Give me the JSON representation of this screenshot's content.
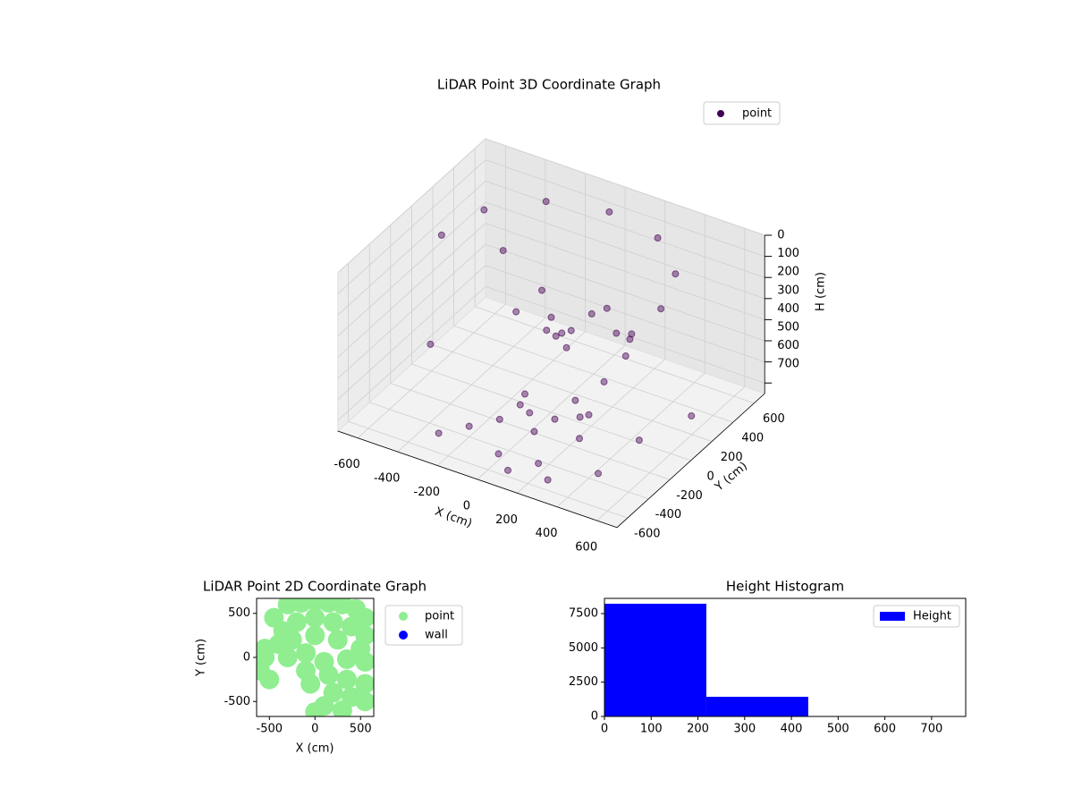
{
  "chart_data": [
    {
      "type": "scatter3d",
      "title": "LiDAR Point 3D Coordinate Graph",
      "xlabel": "X (cm)",
      "ylabel": "Y (cm)",
      "zlabel": "H (cm)",
      "xlim": [
        -700,
        700
      ],
      "ylim": [
        -700,
        700
      ],
      "zlim": [
        0,
        750
      ],
      "xticks": [
        -600,
        -400,
        -200,
        0,
        200,
        400,
        600
      ],
      "yticks": [
        -600,
        -400,
        -200,
        0,
        200,
        400,
        600
      ],
      "zticks": [
        0,
        100,
        200,
        300,
        400,
        500,
        600,
        700
      ],
      "grid": true,
      "legend": "upper right",
      "series": [
        {
          "name": "point",
          "color": "#440154",
          "x": [
            -550,
            -480,
            -280,
            0,
            280,
            480,
            550,
            500,
            450,
            400,
            -100,
            0,
            50,
            -50,
            100,
            150,
            200,
            -150,
            0,
            50,
            300,
            400,
            350,
            0,
            50,
            100,
            150,
            250,
            300,
            -50,
            200,
            -500,
            -400,
            -300,
            100,
            300,
            500,
            600,
            650,
            -200,
            -100,
            0,
            200
          ],
          "y": [
            0,
            270,
            480,
            550,
            480,
            270,
            0,
            -200,
            -350,
            -400,
            100,
            0,
            -50,
            50,
            0,
            100,
            150,
            -50,
            100,
            50,
            50,
            -50,
            100,
            -250,
            -300,
            -350,
            -250,
            -200,
            -300,
            -200,
            -150,
            -200,
            300,
            -500,
            -600,
            -600,
            -500,
            -300,
            100,
            -400,
            -300,
            -500,
            -500
          ],
          "z": [
            90,
            70,
            60,
            50,
            50,
            60,
            80,
            150,
            300,
            450,
            250,
            300,
            350,
            400,
            330,
            280,
            260,
            300,
            420,
            450,
            300,
            330,
            310,
            550,
            600,
            650,
            620,
            600,
            640,
            640,
            560,
            500,
            250,
            720,
            720,
            700,
            650,
            550,
            600,
            700,
            680,
            720,
            700
          ]
        }
      ]
    },
    {
      "type": "scatter",
      "title": "LiDAR Point 2D Coordinate Graph",
      "xlabel": "X (cm)",
      "ylabel": "Y (cm)",
      "xlim": [
        -640,
        645
      ],
      "ylim": [
        -670,
        670
      ],
      "xticks": [
        -500,
        0,
        500
      ],
      "yticks": [
        -500,
        0,
        500
      ],
      "legend": "outside right",
      "series": [
        {
          "name": "point",
          "color": "#90ee90",
          "x": [
            -300,
            -150,
            0,
            150,
            300,
            450,
            550,
            -450,
            -350,
            -200,
            0,
            200,
            400,
            550,
            -550,
            -400,
            -250,
            0,
            250,
            500,
            -550,
            -300,
            -100,
            100,
            350,
            550,
            -100,
            150,
            350,
            550,
            -50,
            200,
            400,
            550,
            100,
            300,
            0,
            -600,
            -500
          ],
          "y": [
            600,
            620,
            640,
            620,
            600,
            550,
            450,
            450,
            300,
            400,
            450,
            400,
            350,
            250,
            100,
            150,
            200,
            250,
            200,
            100,
            0,
            0,
            50,
            -50,
            -20,
            -50,
            -150,
            -200,
            -250,
            -300,
            -300,
            -400,
            -450,
            -500,
            -550,
            -600,
            -620,
            -150,
            -250
          ]
        },
        {
          "name": "wall",
          "color": "#0000ff",
          "x": [],
          "y": []
        }
      ]
    },
    {
      "type": "histogram",
      "title": "Height Histogram",
      "bins": [
        0,
        218,
        436,
        654
      ],
      "values": [
        8220,
        1435,
        3
      ],
      "series_name": "Height",
      "color": "#0000ff",
      "xlim": [
        0,
        773
      ],
      "ylim": [
        0,
        8610
      ],
      "xticks": [
        0,
        100,
        200,
        300,
        400,
        500,
        600,
        700
      ],
      "yticks": [
        0,
        2500,
        5000,
        7500
      ],
      "legend": "upper right"
    }
  ]
}
